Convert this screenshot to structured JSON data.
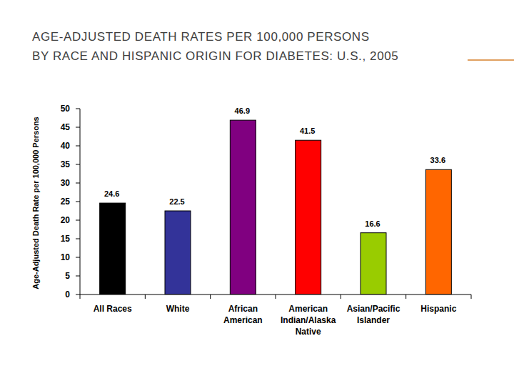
{
  "chart_data": {
    "type": "bar",
    "title": "AGE-ADJUSTED DEATH RATES PER 100,000 PERSONS\nBY RACE AND HISPANIC ORIGIN FOR DIABETES: U.S., 2005",
    "y_label": "Age-Adjusted Death Rate per 100,000 Persons",
    "categories": [
      "All Races",
      "White",
      "African American",
      "American Indian/Alaska Native",
      "Asian/Pacific Islander",
      "Hispanic"
    ],
    "values": [
      24.6,
      22.5,
      46.9,
      41.5,
      16.6,
      33.6
    ],
    "colors": [
      "#000000",
      "#333399",
      "#800080",
      "#ff0000",
      "#99cc00",
      "#ff6600"
    ],
    "ylim": [
      0,
      50
    ],
    "yticks": [
      0,
      5,
      10,
      15,
      20,
      25,
      30,
      35,
      40,
      45,
      50
    ],
    "grid": false,
    "data_labels": true
  }
}
